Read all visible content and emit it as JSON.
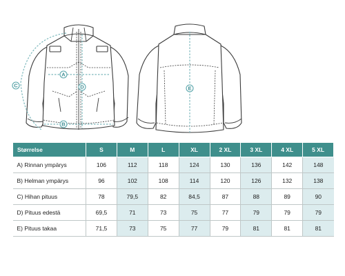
{
  "diagram": {
    "badges": {
      "a": "A",
      "b": "B",
      "c": "C",
      "d": "D",
      "e": "E"
    }
  },
  "table": {
    "header_label": "Størrelse",
    "sizes": [
      "S",
      "M",
      "L",
      "XL",
      "2 XL",
      "3 XL",
      "4 XL",
      "5 XL"
    ],
    "rows": [
      {
        "label": "A)  Rinnan ympärys",
        "values": [
          "106",
          "112",
          "118",
          "124",
          "130",
          "136",
          "142",
          "148"
        ]
      },
      {
        "label": "B)  Helman ympärys",
        "values": [
          "96",
          "102",
          "108",
          "114",
          "120",
          "126",
          "132",
          "138"
        ]
      },
      {
        "label": "C)   Hihan pituus",
        "values": [
          "78",
          "79,5",
          "82",
          "84,5",
          "87",
          "88",
          "89",
          "90"
        ]
      },
      {
        "label": "D)  Pituus edestä",
        "values": [
          "69,5",
          "71",
          "73",
          "75",
          "77",
          "79",
          "79",
          "79"
        ]
      },
      {
        "label": "E)  Pituus takaa",
        "values": [
          "71,5",
          "73",
          "75",
          "77",
          "79",
          "81",
          "81",
          "81"
        ]
      }
    ]
  },
  "colors": {
    "header_bg": "#3f8f8c",
    "alt_cell": "#dcecee",
    "accent": "#7cb8bc"
  }
}
